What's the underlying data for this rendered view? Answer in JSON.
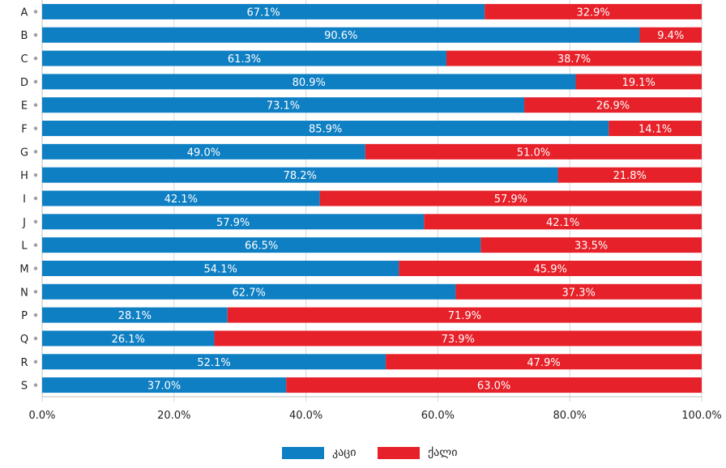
{
  "chart_data": {
    "type": "bar",
    "orientation": "horizontal",
    "stacked": true,
    "categories": [
      "A",
      "B",
      "C",
      "D",
      "E",
      "F",
      "G",
      "H",
      "I",
      "J",
      "L",
      "M",
      "N",
      "P",
      "Q",
      "R",
      "S"
    ],
    "series": [
      {
        "name": "კაცი",
        "color": "#0f7fc3",
        "values": [
          67.1,
          90.6,
          61.3,
          80.9,
          73.1,
          85.9,
          49.0,
          78.2,
          42.1,
          57.9,
          66.5,
          54.1,
          62.7,
          28.1,
          26.1,
          52.1,
          37.0
        ]
      },
      {
        "name": "ქალი",
        "color": "#e62129",
        "values": [
          32.9,
          9.4,
          38.7,
          19.1,
          26.9,
          14.1,
          51.0,
          21.8,
          57.9,
          42.1,
          33.5,
          45.9,
          37.3,
          71.9,
          73.9,
          47.9,
          63.0
        ]
      }
    ],
    "xlim": [
      0,
      100
    ],
    "xticks": [
      "0.0%",
      "20.0%",
      "40.0%",
      "60.0%",
      "80.0%",
      "100.0%"
    ],
    "grid": "vertical",
    "legend": "bottom-center",
    "title": "",
    "xlabel": "",
    "ylabel": ""
  }
}
